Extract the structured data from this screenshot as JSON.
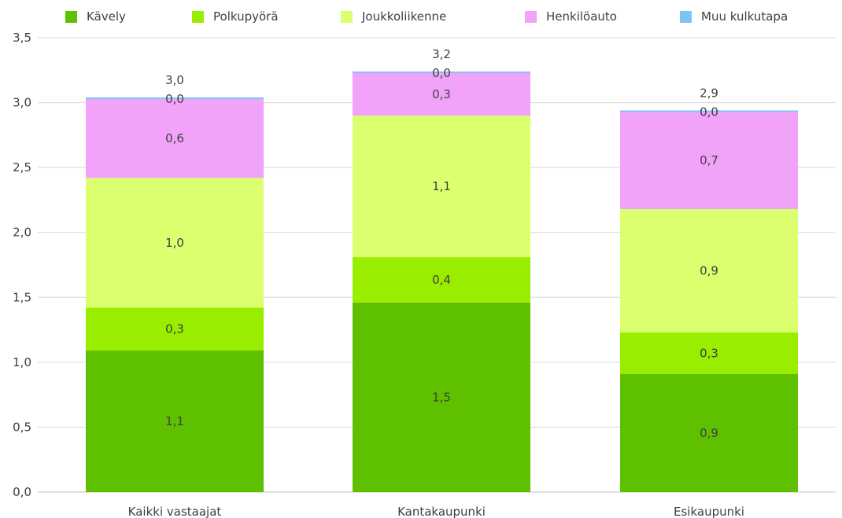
{
  "chart_data": {
    "type": "bar",
    "stacked": true,
    "categories": [
      "Kaikki vastaajat",
      "Kantakaupunki",
      "Esikaupunki"
    ],
    "series": [
      {
        "name": "Kävely",
        "color": "#5fc000",
        "values": [
          1.1,
          1.5,
          0.9
        ],
        "value_labels": [
          "1,1",
          "1,5",
          "0,9"
        ],
        "plotted": [
          1.09,
          1.46,
          0.91
        ]
      },
      {
        "name": "Polkupyörä",
        "color": "#99ee00",
        "values": [
          0.3,
          0.4,
          0.3
        ],
        "value_labels": [
          "0,3",
          "0,4",
          "0,3"
        ],
        "plotted": [
          0.33,
          0.35,
          0.32
        ]
      },
      {
        "name": "Joukkoliikenne",
        "color": "#dbff6e",
        "values": [
          1.0,
          1.1,
          0.9
        ],
        "value_labels": [
          "1,0",
          "1,1",
          "0,9"
        ],
        "plotted": [
          1.0,
          1.09,
          0.95
        ]
      },
      {
        "name": "Henkilöauto",
        "color": "#f0a3f8",
        "values": [
          0.6,
          0.3,
          0.7
        ],
        "value_labels": [
          "0,6",
          "0,3",
          "0,7"
        ],
        "plotted": [
          0.61,
          0.33,
          0.75
        ]
      },
      {
        "name": "Muu kulkutapa",
        "color": "#7cc4f4",
        "values": [
          0.0,
          0.0,
          0.0
        ],
        "value_labels": [
          "0,0",
          "0,0",
          "0,0"
        ],
        "plotted": [
          0.01,
          0.01,
          0.01
        ]
      }
    ],
    "totals": [
      3.0,
      3.2,
      2.9
    ],
    "total_labels": [
      "3,0",
      "3,2",
      "2,9"
    ],
    "ylim": [
      0,
      3.5
    ],
    "yticks": [
      0,
      0.5,
      1.0,
      1.5,
      2.0,
      2.5,
      3.0,
      3.5
    ],
    "ytick_labels": [
      "0,0",
      "0,5",
      "1,0",
      "1,5",
      "2,0",
      "2,5",
      "3,0",
      "3,5"
    ],
    "grid": true,
    "legend_position": "top",
    "xlabel": "",
    "ylabel": "",
    "title": ""
  }
}
